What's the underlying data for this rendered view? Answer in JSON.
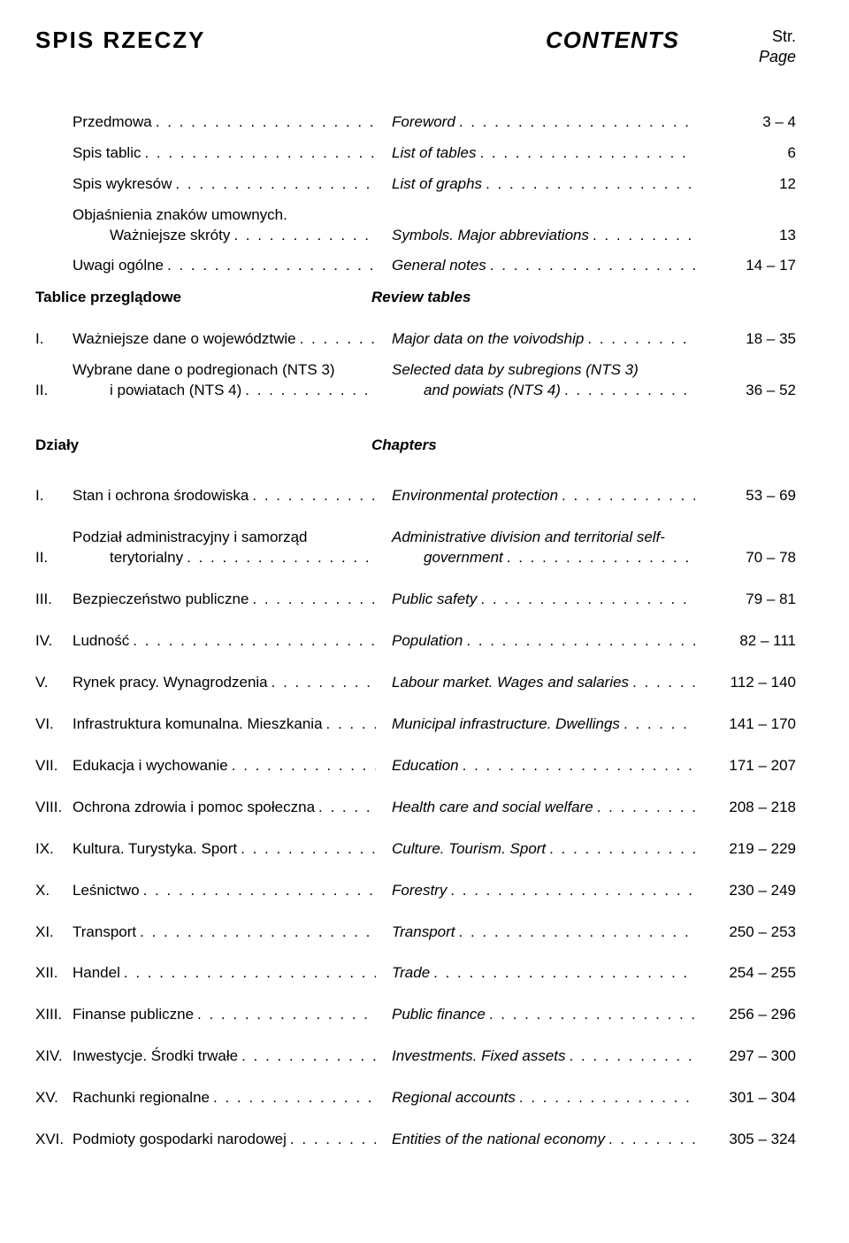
{
  "header": {
    "title_pl": "SPIS RZECZY",
    "title_en": "CONTENTS",
    "page_pl": "Str.",
    "page_en": "Page"
  },
  "intro": [
    {
      "pl": "Przedmowa",
      "en": "Foreword",
      "pg": "3 – 4"
    },
    {
      "pl": "Spis tablic",
      "en": "List of tables",
      "pg": "6"
    },
    {
      "pl": "Spis wykresów",
      "en": "List of graphs",
      "pg": "12"
    },
    {
      "pl1": "Objaśnienia znaków umownych.",
      "pl2": "Ważniejsze skróty",
      "en": "Symbols. Major abbreviations",
      "pg": "13"
    },
    {
      "pl": "Uwagi ogólne",
      "en": "General notes",
      "pg": "14 – 17"
    }
  ],
  "sec1": {
    "pl": "Tablice przeglądowe",
    "en": "Review tables"
  },
  "review": [
    {
      "rn": "I.",
      "pl": "Ważniejsze dane o województwie",
      "en": "Major data on the voivodship",
      "pg": "18 – 35"
    },
    {
      "rn": "II.",
      "pl1": "Wybrane dane o podregionach (NTS 3)",
      "pl2": "i powiatach (NTS 4)",
      "en1": "Selected data by subregions (NTS 3)",
      "en2": "and powiats (NTS 4)",
      "pg": "36 – 52"
    }
  ],
  "sec2": {
    "pl": "Działy",
    "en": "Chapters"
  },
  "chapters": [
    {
      "rn": "I.",
      "pl": "Stan i ochrona środowiska",
      "en": "Environmental protection",
      "pg": "53 – 69"
    },
    {
      "rn": "II.",
      "pl1": "Podział administracyjny i samorząd",
      "pl2": "terytorialny",
      "en1": "Administrative division and territorial self-",
      "en2": "government",
      "pg": "70 – 78"
    },
    {
      "rn": "III.",
      "pl": "Bezpieczeństwo publiczne",
      "en": "Public safety",
      "pg": "79 – 81"
    },
    {
      "rn": "IV.",
      "pl": "Ludność",
      "en": "Population",
      "pg": "82 – 111"
    },
    {
      "rn": "V.",
      "pl": "Rynek pracy. Wynagrodzenia",
      "en": "Labour market. Wages and salaries",
      "pg": "112 – 140"
    },
    {
      "rn": "VI.",
      "pl": "Infrastruktura komunalna. Mieszkania",
      "en": "Municipal infrastructure. Dwellings",
      "pg": "141 – 170"
    },
    {
      "rn": "VII.",
      "pl": "Edukacja i wychowanie",
      "en": "Education",
      "pg": "171 – 207"
    },
    {
      "rn": "VIII.",
      "pl": "Ochrona zdrowia i pomoc społeczna",
      "en": "Health care and social welfare",
      "pg": "208 – 218"
    },
    {
      "rn": "IX.",
      "pl": "Kultura. Turystyka. Sport",
      "en": "Culture. Tourism. Sport",
      "pg": "219 – 229"
    },
    {
      "rn": "X.",
      "pl": "Leśnictwo",
      "en": "Forestry",
      "pg": "230 – 249"
    },
    {
      "rn": "XI.",
      "pl": "Transport",
      "en": "Transport",
      "pg": "250 – 253"
    },
    {
      "rn": "XII.",
      "pl": "Handel",
      "en": "Trade",
      "pg": "254 – 255"
    },
    {
      "rn": "XIII.",
      "pl": "Finanse publiczne",
      "en": "Public finance",
      "pg": "256 – 296"
    },
    {
      "rn": "XIV.",
      "pl": "Inwestycje. Środki trwałe",
      "en": "Investments. Fixed assets",
      "pg": "297 – 300"
    },
    {
      "rn": "XV.",
      "pl": "Rachunki regionalne",
      "en": "Regional accounts",
      "pg": "301 – 304"
    },
    {
      "rn": "XVI.",
      "pl": "Podmioty gospodarki narodowej",
      "en": "Entities of the national economy",
      "pg": "305 – 324"
    }
  ],
  "dots": ". . . . . . . . . . . . . . . . . . . . . . . . . . . . . . . . . . . . . . . . . . . . . . . . . . . . . . . . ."
}
